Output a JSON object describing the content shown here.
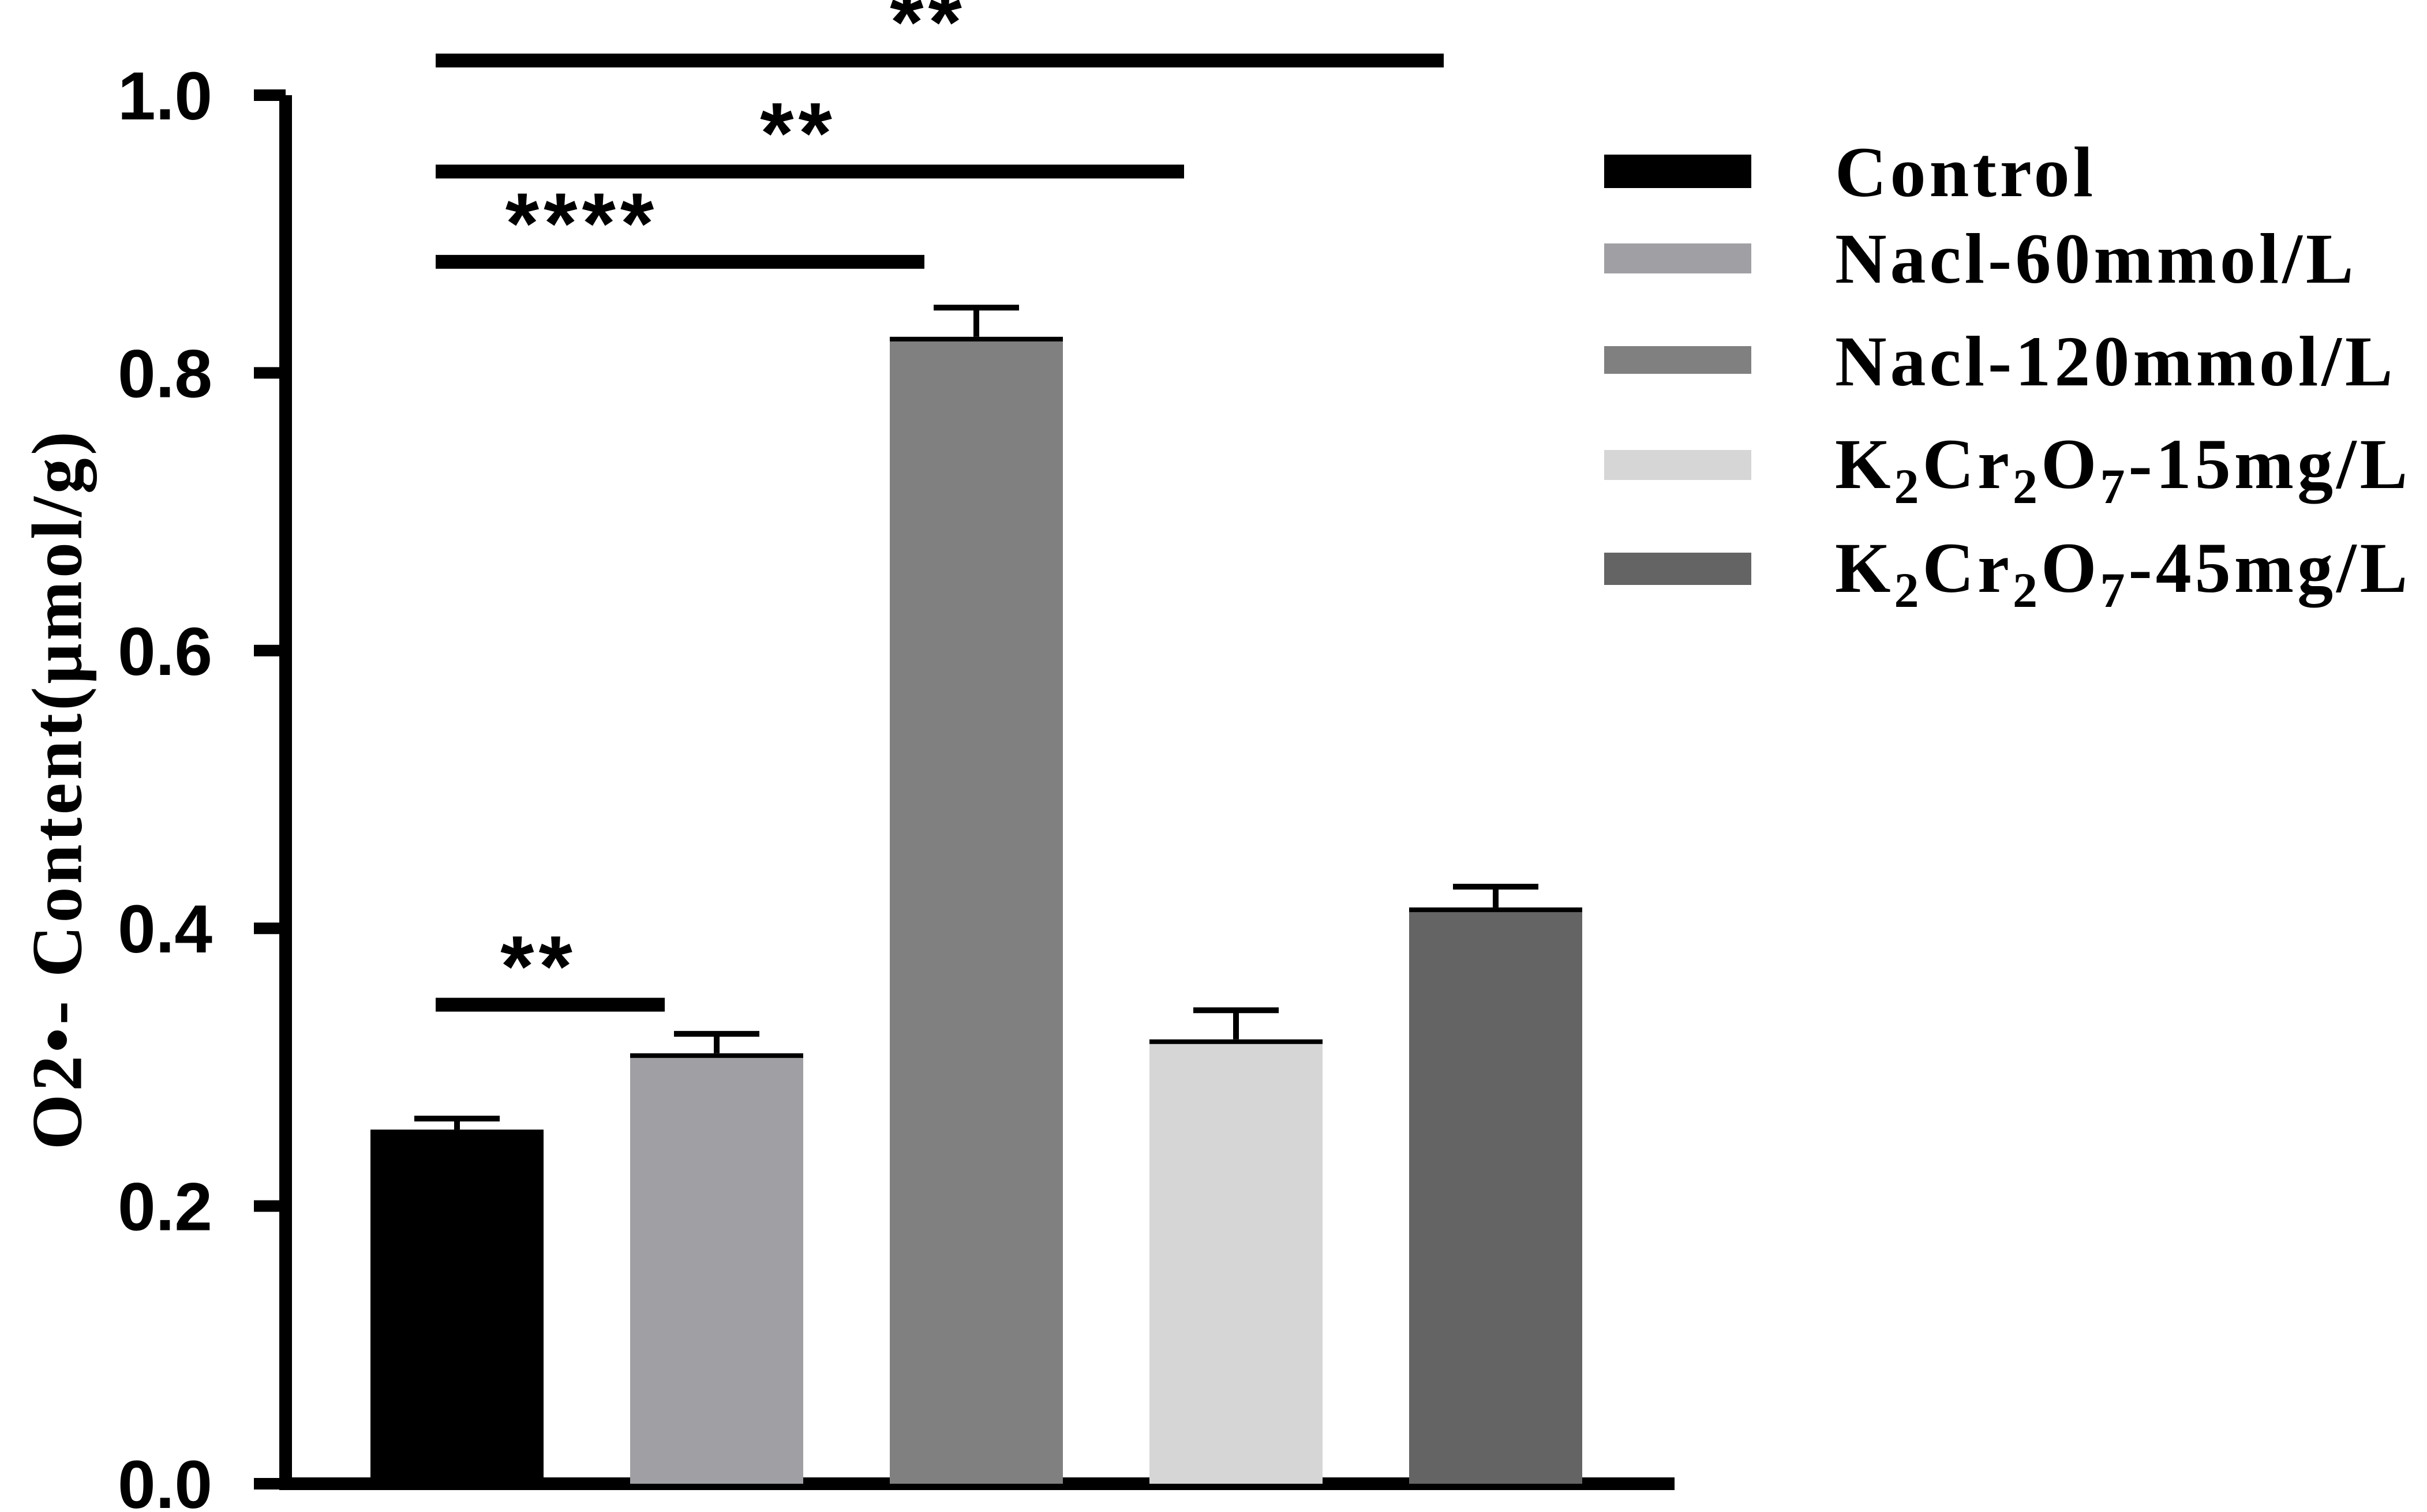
{
  "chart_data": {
    "type": "bar",
    "title": "",
    "xlabel": "",
    "ylabel": "O2•- Content(μmol/g)",
    "ylim": [
      0,
      1.0
    ],
    "yticks": [
      "0.0",
      "0.2",
      "0.4",
      "0.6",
      "0.8",
      "1.0"
    ],
    "grid": false,
    "legend_position": "right",
    "series": [
      {
        "name": "Control",
        "value": 0.255,
        "error": 0.008,
        "color": "#000000",
        "legend": {
          "main": "Control"
        }
      },
      {
        "name": "Nacl-60mmol/L",
        "value": 0.31,
        "error": 0.014,
        "color": "#a0a0a4",
        "legend": {
          "main": "Nacl-60mmol/L"
        }
      },
      {
        "name": "Nacl-120mmol/L",
        "value": 0.826,
        "error": 0.021,
        "color": "#808080",
        "legend": {
          "main": "Nacl-120mmol/L"
        }
      },
      {
        "name": "K2Cr2O7-15mg/L",
        "value": 0.32,
        "error": 0.021,
        "color": "#d6d6d6",
        "legend": {
          "k": "K",
          "s1": "2",
          "cr": "Cr",
          "s2": "2",
          "o": "O",
          "s3": "7",
          "rest": "-15mg/L"
        }
      },
      {
        "name": "K2Cr2O7-45mg/L",
        "value": 0.415,
        "error": 0.015,
        "color": "#646464",
        "legend": {
          "k": "K",
          "s1": "2",
          "cr": "Cr",
          "s2": "2",
          "o": "O",
          "s3": "7",
          "rest": "-45mg/L"
        }
      }
    ],
    "significance": [
      {
        "from": 0,
        "to": 1,
        "y": 0.345,
        "label": "**"
      },
      {
        "from": 0,
        "to": 2,
        "y": 0.88,
        "label": "****"
      },
      {
        "from": 0,
        "to": 3,
        "y": 0.945,
        "label": "**"
      },
      {
        "from": 0,
        "to": 4,
        "y": 1.025,
        "label": "**"
      }
    ]
  }
}
